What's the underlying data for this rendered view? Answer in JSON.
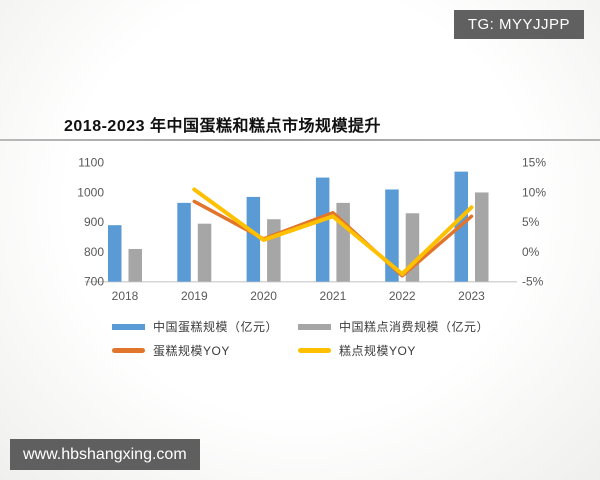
{
  "header": {
    "tg_badge": "TG: MYYJJPP"
  },
  "title": "2018-2023 年中国蛋糕和糕点市场规模提升",
  "footer": {
    "website": "www.hbshangxing.com"
  },
  "colors": {
    "bar_blue": "#5B9BD5",
    "bar_gray": "#A6A6A6",
    "line_orange": "#E2752C",
    "line_yellow": "#FFC000",
    "axis_text": "#595959",
    "baseline": "#d6d6d6",
    "banner_bg": "#606060",
    "divider": "#a9a9a9"
  },
  "chart_data": {
    "type": "bar",
    "title": "2018-2023 年中国蛋糕和糕点市场规模提升",
    "categories": [
      "2018",
      "2019",
      "2020",
      "2021",
      "2022",
      "2023"
    ],
    "series": [
      {
        "name": "中国蛋糕规模（亿元）",
        "type": "bar",
        "axis": "left",
        "color": "#5B9BD5",
        "values": [
          890,
          965,
          985,
          1050,
          1010,
          1070
        ]
      },
      {
        "name": "中国糕点消费规模（亿元）",
        "type": "bar",
        "axis": "left",
        "color": "#A6A6A6",
        "values": [
          810,
          895,
          910,
          965,
          930,
          1000
        ]
      },
      {
        "name": "蛋糕规模YOY",
        "type": "line",
        "axis": "right",
        "color": "#E2752C",
        "values": [
          null,
          8.5,
          2.2,
          6.6,
          -4.0,
          6.0
        ]
      },
      {
        "name": "糕点规模YOY",
        "type": "line",
        "axis": "right",
        "color": "#FFC000",
        "values": [
          null,
          10.5,
          2.0,
          6.0,
          -3.7,
          7.5
        ]
      }
    ],
    "left_axis": {
      "min": 700,
      "max": 1100,
      "tick_values": [
        700,
        800,
        900,
        1000,
        1100
      ],
      "tick_labels": [
        "700",
        "800",
        "900",
        "1000",
        "1100"
      ],
      "unit": "亿元"
    },
    "right_axis": {
      "min": -5,
      "max": 15,
      "tick_values": [
        -5,
        0,
        5,
        10,
        15
      ],
      "tick_labels": [
        "-5%",
        "0%",
        "5%",
        "10%",
        "15%"
      ],
      "unit": "%"
    },
    "grid": false,
    "legend_position": "bottom"
  }
}
